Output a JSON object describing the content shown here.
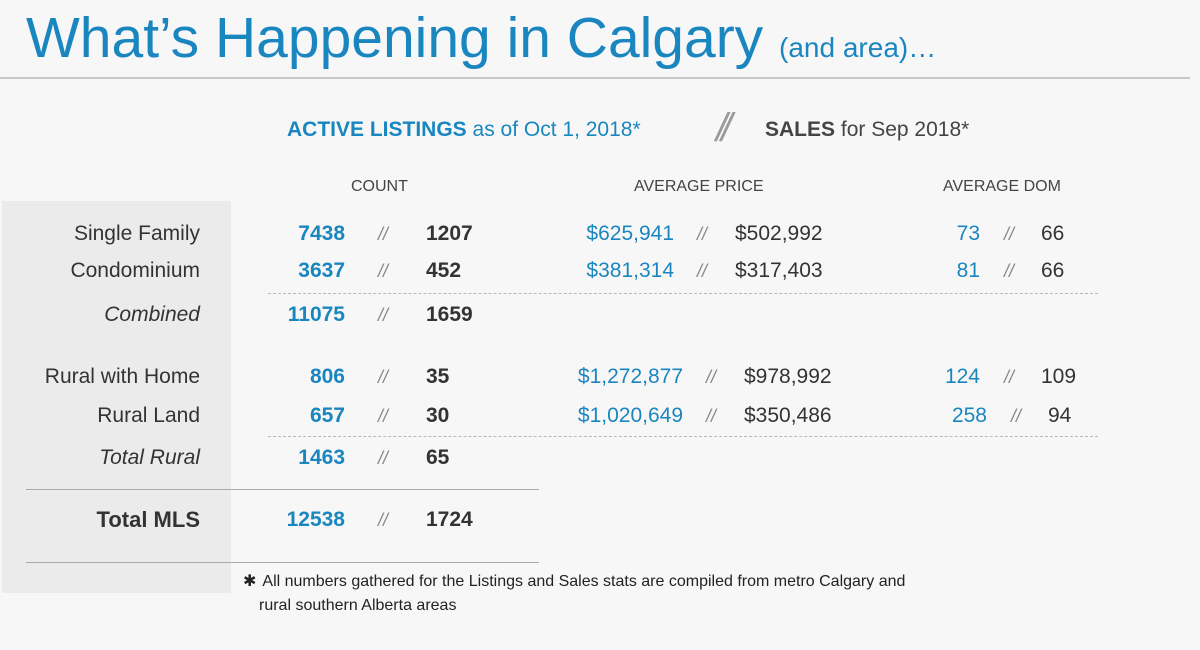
{
  "header": {
    "title": "What’s Happening in Calgary",
    "title_suffix": "(and area)…"
  },
  "subheader": {
    "active_bold": "ACTIVE LISTINGS",
    "active_rest": "as of Oct 1, 2018*",
    "divider": "//",
    "sales_bold": "SALES",
    "sales_rest": "for Sep 2018*"
  },
  "columns": {
    "count": "COUNT",
    "price": "AVERAGE PRICE",
    "dom": "AVERAGE DOM"
  },
  "separator": "//",
  "rows": [
    {
      "label": "Single Family",
      "count_active": "7438",
      "count_sales": "1207",
      "price_active": "$625,941",
      "price_sales": "$502,992",
      "dom_active": "73",
      "dom_sales": "66"
    },
    {
      "label": "Condominium",
      "count_active": "3637",
      "count_sales": "452",
      "price_active": "$381,314",
      "price_sales": "$317,403",
      "dom_active": "81",
      "dom_sales": "66"
    },
    {
      "label": "Combined",
      "count_active": "11075",
      "count_sales": "1659"
    },
    {
      "label": "Rural with Home",
      "count_active": "806",
      "count_sales": "35",
      "price_active": "$1,272,877",
      "price_sales": "$978,992",
      "dom_active": "124",
      "dom_sales": "109"
    },
    {
      "label": "Rural Land",
      "count_active": "657",
      "count_sales": "30",
      "price_active": "$1,020,649",
      "price_sales": "$350,486",
      "dom_active": "258",
      "dom_sales": "94"
    },
    {
      "label": "Total Rural",
      "count_active": "1463",
      "count_sales": "65"
    },
    {
      "label": "Total MLS",
      "count_active": "12538",
      "count_sales": "1724"
    }
  ],
  "footnote": {
    "asterisk": "✱",
    "line1": "All numbers gathered for the Listings and Sales stats are compiled from metro Calgary and",
    "line2": "rural southern Alberta areas"
  },
  "colors": {
    "accent": "#1a86c0",
    "text": "#333333"
  }
}
